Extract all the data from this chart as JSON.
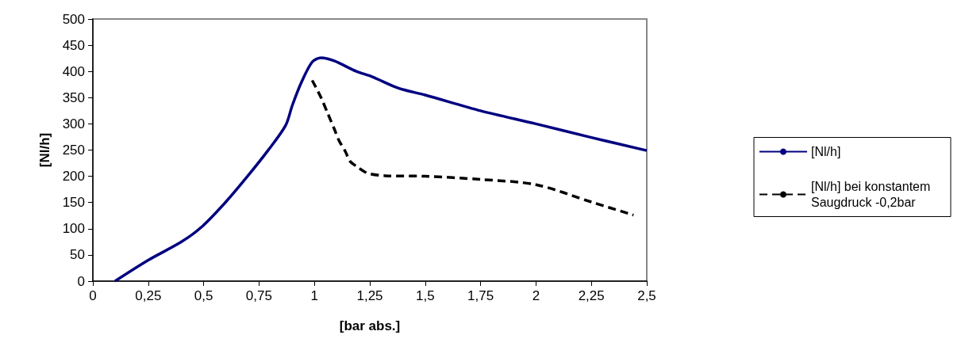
{
  "chart_data": {
    "type": "line",
    "xlabel": "[bar abs.]",
    "ylabel": "[Nl/h]",
    "xlim": [
      0,
      2.5
    ],
    "xticks": [
      0,
      {
        "value": 0.25,
        "label": "0,25"
      },
      {
        "value": 0.5,
        "label": "0,5"
      },
      {
        "value": 0.75,
        "label": "0,75"
      },
      1,
      {
        "value": 1.25,
        "label": "1,25"
      },
      {
        "value": 1.5,
        "label": "1,5"
      },
      {
        "value": 1.75,
        "label": "1,75"
      },
      2,
      {
        "value": 2.25,
        "label": "2,25"
      },
      {
        "value": 2.5,
        "label": "2,5"
      }
    ],
    "ylim": [
      0,
      500
    ],
    "yticks": [
      0,
      50,
      100,
      150,
      200,
      250,
      300,
      350,
      400,
      450,
      500
    ],
    "grid": false,
    "legend": "right",
    "marker": "none",
    "series": [
      {
        "name": "[Nl/h]",
        "color": "#000080",
        "line_style": "solid",
        "x": [
          0.1,
          0.25,
          0.4,
          0.49,
          0.6,
          0.7,
          0.79,
          0.87,
          0.9,
          0.94,
          0.99,
          1.03,
          1.09,
          1.19,
          1.26,
          1.38,
          1.5,
          1.75,
          2.0,
          2.25,
          2.5
        ],
        "values": [
          0,
          40,
          75,
          103,
          151,
          201,
          249,
          297,
          335,
          378,
          418,
          426,
          420,
          400,
          390,
          368,
          355,
          325,
          300,
          274,
          249
        ]
      },
      {
        "name": "[Nl/h] bei konstantem Saugdruck -0,2bar",
        "color": "#000000",
        "line_style": "dashed",
        "x": [
          0.99,
          1.03,
          1.06,
          1.09,
          1.11,
          1.14,
          1.16,
          1.19,
          1.24,
          1.32,
          1.5,
          1.75,
          2.0,
          2.25,
          2.44
        ],
        "values": [
          383,
          350,
          320,
          290,
          269,
          247,
          229,
          219,
          206,
          201,
          200,
          194,
          184,
          151,
          126
        ]
      }
    ]
  }
}
